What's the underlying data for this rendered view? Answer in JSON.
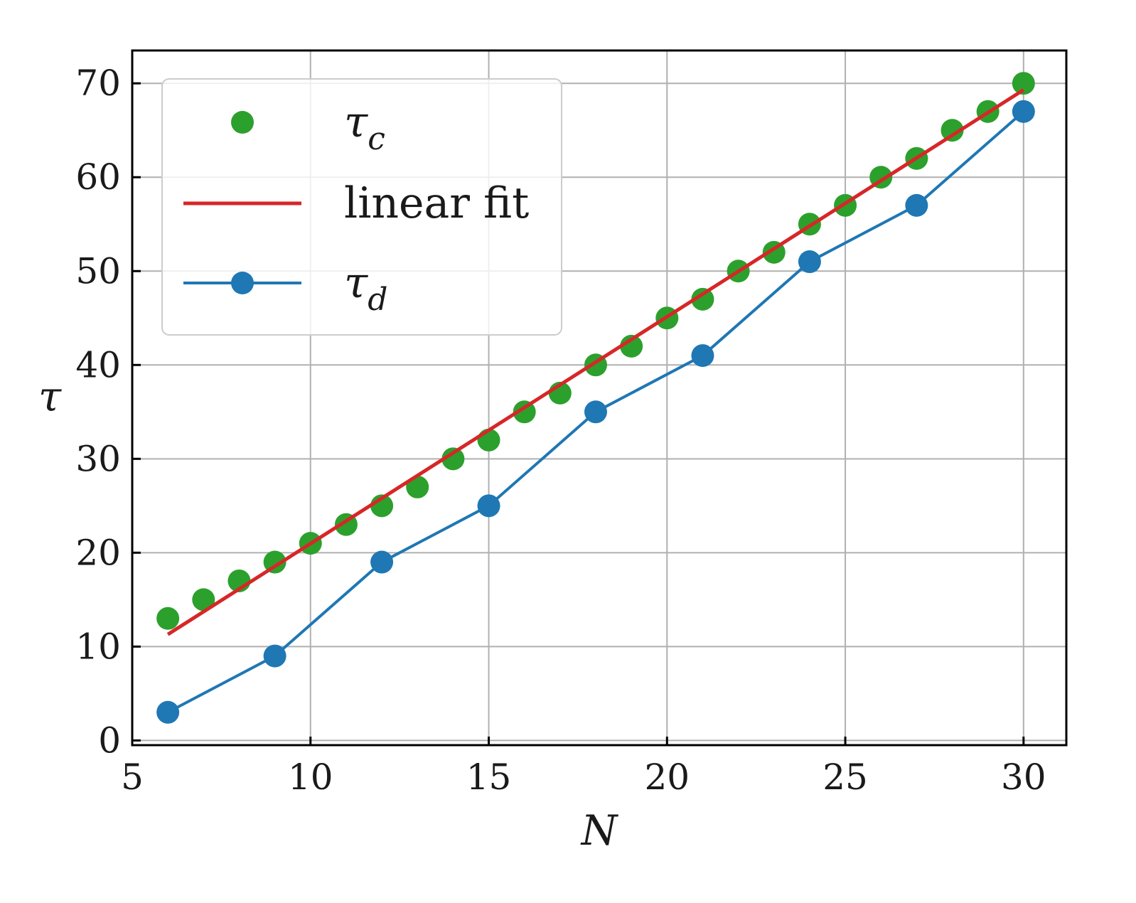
{
  "chart_data": {
    "type": "line",
    "xlabel": "N",
    "ylabel": "τ",
    "xlim": [
      5,
      31.2
    ],
    "ylim": [
      -0.5,
      73.5
    ],
    "xticks": [
      5,
      10,
      15,
      20,
      25,
      30
    ],
    "yticks": [
      0,
      10,
      20,
      30,
      40,
      50,
      60,
      70
    ],
    "grid": true,
    "legend_position": "top-left",
    "series": [
      {
        "name": "τ_c",
        "label_main": "τ",
        "label_sub": "c",
        "style": "markers",
        "color": "#2ca02c",
        "x": [
          6,
          7,
          8,
          9,
          10,
          11,
          12,
          13,
          14,
          15,
          16,
          17,
          18,
          19,
          20,
          21,
          22,
          23,
          24,
          25,
          26,
          27,
          28,
          29,
          30
        ],
        "y": [
          13,
          15,
          17,
          19,
          21,
          23,
          25,
          27,
          30,
          32,
          35,
          37,
          40,
          42,
          45,
          47,
          50,
          52,
          55,
          57,
          60,
          62,
          65,
          67,
          70
        ]
      },
      {
        "name": "linear fit",
        "style": "line",
        "color": "#d62728",
        "x": [
          6,
          30
        ],
        "y": [
          11.3,
          69.3
        ]
      },
      {
        "name": "τ_d",
        "label_main": "τ",
        "label_sub": "d",
        "style": "line-markers",
        "color": "#1f77b4",
        "x": [
          6,
          9,
          12,
          15,
          18,
          21,
          24,
          27,
          30
        ],
        "y": [
          3,
          9,
          19,
          25,
          35,
          41,
          51,
          57,
          67
        ]
      }
    ]
  }
}
